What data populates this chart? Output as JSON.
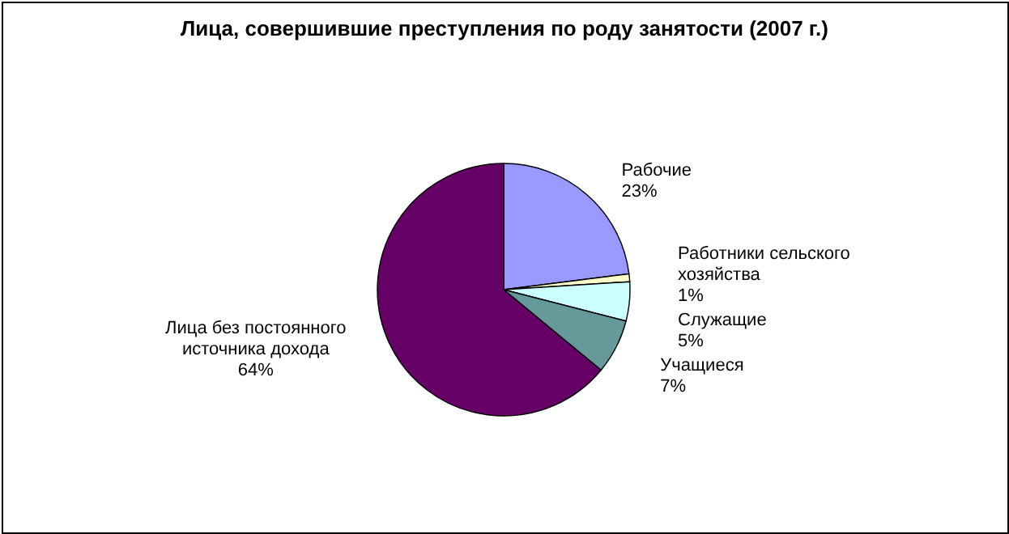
{
  "chart_data": {
    "type": "pie",
    "title": "Лица, совершившие преступления по роду занятости (2007 г.)",
    "categories": [
      "Рабочие",
      "Работники сельского хозяйства",
      "Служащие",
      "Учащиеся",
      "Лица без постоянного источника дохода"
    ],
    "values": [
      23,
      1,
      5,
      7,
      64
    ],
    "value_labels": [
      "23%",
      "1%",
      "5%",
      "7%",
      "64%"
    ],
    "colors": [
      "#9999ff",
      "#ffffcc",
      "#ccffff",
      "#669999",
      "#660066"
    ],
    "legend": false
  }
}
